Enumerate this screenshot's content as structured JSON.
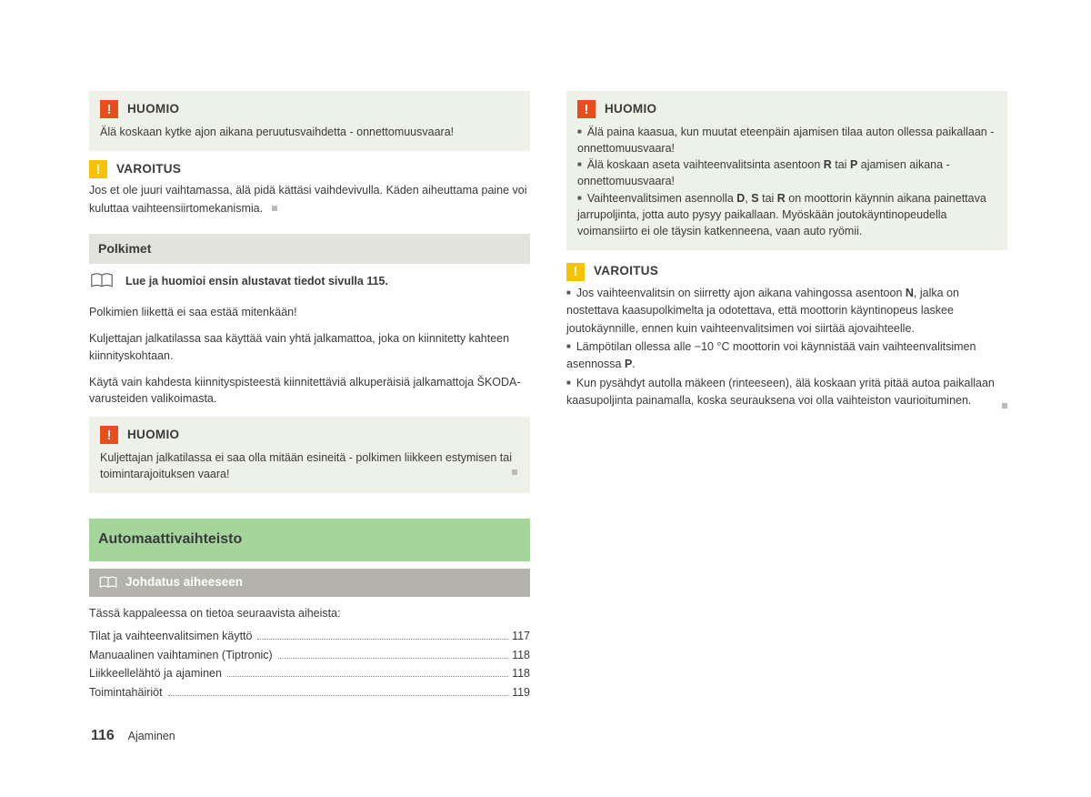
{
  "colors": {
    "box_bg": "#eef1e8",
    "icon_red": "#e84e1b",
    "icon_yellow": "#f7c300",
    "section_bar": "#e3e3de",
    "green_bar": "#a4d69c",
    "sub_bar": "#b3b3ab",
    "text": "#3a3a3a"
  },
  "left": {
    "huomio1": {
      "title": "HUOMIO",
      "text": "Älä koskaan kytke ajon aikana peruutusvaihdetta - onnettomuusvaara!"
    },
    "varoitus1": {
      "title": "VAROITUS",
      "text": "Jos et ole juuri vaihtamassa, älä pidä kättäsi vaihdevivulla. Käden aiheuttama paine voi kuluttaa vaihteensiirtomekanismia."
    },
    "polkimet": {
      "bar": "Polkimet",
      "readfirst": "Lue ja huomioi ensin alustavat tiedot sivulla 115.",
      "p1": "Polkimien liikettä ei saa estää mitenkään!",
      "p2": "Kuljettajan jalkatilassa saa käyttää vain yhtä jalkamattoa, joka on kiinnitetty kahteen kiinnityskohtaan.",
      "p3": "Käytä vain kahdesta kiinnityspisteestä kiinnitettäviä alkuperäisiä jalkamattoja ŠKODA-varusteiden valikoimasta."
    },
    "huomio2": {
      "title": "HUOMIO",
      "text": "Kuljettajan jalkatilassa ei saa olla mitään esineitä - polkimen liikkeen estymisen tai toimintarajoituksen vaara!"
    },
    "auto": {
      "bar": "Automaattivaihteisto",
      "sub": "Johdatus aiheeseen",
      "intro": "Tässä kappaleessa on tietoa seuraavista aiheista:",
      "toc": [
        {
          "label": "Tilat ja vaihteenvalitsimen käyttö",
          "page": "117"
        },
        {
          "label": "Manuaalinen vaihtaminen (Tiptronic)",
          "page": "118"
        },
        {
          "label": "Liikkeellelähtö ja ajaminen",
          "page": "118"
        },
        {
          "label": "Toimintahäiriöt",
          "page": "119"
        }
      ]
    }
  },
  "right": {
    "huomio": {
      "title": "HUOMIO",
      "items": [
        "Älä paina kaasua, kun muutat eteenpäin ajamisen tilaa auton ollessa paikallaan - onnettomuusvaara!",
        "Älä koskaan aseta vaihteenvalitsinta asentoon <b>R</b> tai <b>P</b> ajamisen aikana - onnettomuusvaara!",
        "Vaihteenvalitsimen asennolla <b>D</b>, <b>S</b> tai <b>R</b> on moottorin käynnin aikana painettava jarrupoljinta, jotta auto pysyy paikallaan. Myöskään joutokäyntinopeudella voimansiirto ei ole täysin katkenneena, vaan auto ryömii."
      ]
    },
    "varoitus": {
      "title": "VAROITUS",
      "items": [
        "Jos vaihteenvalitsin on siirretty ajon aikana vahingossa asentoon <b>N</b>, jalka on nostettava kaasupolkimelta ja odotettava, että moottorin käyntinopeus laskee joutokäynnille, ennen kuin vaihteenvalitsimen voi siirtää ajovaihteelle.",
        "Lämpötilan ollessa alle −10 °C moottorin voi käynnistää vain vaihteenvalitsimen asennossa <b>P</b>.",
        "Kun pysähdyt autolla mäkeen (rinteeseen), älä koskaan yritä pitää autoa paikallaan kaasupoljinta painamalla, koska seurauksena voi olla vaihteiston vaurioituminen."
      ]
    }
  },
  "footer": {
    "page": "116",
    "section": "Ajaminen"
  }
}
